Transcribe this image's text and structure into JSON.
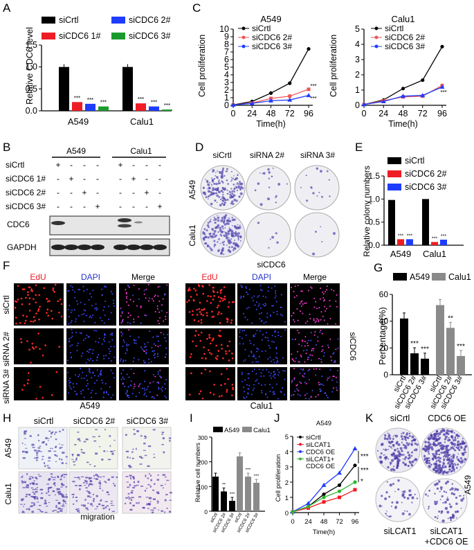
{
  "panels": {
    "A": {
      "letter": "A",
      "ylabel": "Relative CDC6 level",
      "legend": [
        {
          "label": "siCrtl",
          "color": "#000000"
        },
        {
          "label": "siCDC6 1#",
          "color": "#ee1c24"
        },
        {
          "label": "siCDC6 2#",
          "color": "#1e3cff"
        },
        {
          "label": "siCDC6 3#",
          "color": "#1a9a2e"
        }
      ],
      "ticks": [
        "0.0",
        "0.5",
        "1.0",
        "1.5"
      ],
      "sig": "***"
    },
    "B": {
      "letter": "B",
      "groups": [
        "A549",
        "Calu1"
      ],
      "rows": [
        "siCrtl",
        "siCDC6 1#",
        "siCDC6 2#",
        "siCDC6 3#"
      ],
      "marks": [
        [
          "+",
          "-",
          "-",
          "-",
          "+",
          "-",
          "-",
          "-"
        ],
        [
          "-",
          "+",
          "-",
          "-",
          "-",
          "+",
          "-",
          "-"
        ],
        [
          "-",
          "-",
          "+",
          "-",
          "-",
          "-",
          "+",
          "-"
        ],
        [
          "-",
          "-",
          "-",
          "+",
          "-",
          "-",
          "-",
          "+"
        ]
      ],
      "blots": [
        "CDC6",
        "GAPDH"
      ]
    },
    "C": {
      "letter": "C",
      "ylabel": "Cell proliferation",
      "xlabel": "Time(h)",
      "sig": "***"
    },
    "D": {
      "letter": "D",
      "cols": [
        "siCrtl",
        "siRNA 2#",
        "siRNA 3#"
      ],
      "rows": [
        "A549",
        "Calu1"
      ],
      "caption": "siCDC6"
    },
    "E": {
      "letter": "E",
      "ylabel": "Relative colony numbers",
      "ticks": [
        "0.0",
        "0.5",
        "1.0",
        "1.5"
      ],
      "sig": "***",
      "legend": [
        {
          "label": "siCrtl",
          "color": "#000000"
        },
        {
          "label": "siCDC6 2#",
          "color": "#ee1c24"
        },
        {
          "label": "siCDC6 3#",
          "color": "#1e3cff"
        }
      ]
    },
    "F": {
      "letter": "F",
      "channels": [
        "EdU",
        "DAPI",
        "Merge"
      ],
      "rows": [
        "siCrtl",
        "siRNA 2#",
        "siRNA 3#"
      ],
      "groups": [
        "A549",
        "Calu1"
      ],
      "side": "siCDC6",
      "colors": {
        "edu": "#ee1c24",
        "dapi": "#2233cc"
      }
    },
    "G": {
      "letter": "G",
      "ylabel": "Percentage(%)",
      "ticks": [
        "0",
        "20",
        "40",
        "60"
      ],
      "legend": [
        "A549",
        "Calu1"
      ],
      "xcats": [
        "siCrtl",
        "siCDC6 2#",
        "siCDC6 3#"
      ],
      "sig": [
        "***",
        "***",
        "**",
        "***"
      ]
    },
    "H": {
      "letter": "H",
      "cols": [
        "siCrtl",
        "siCDC6 2#",
        "siCDC6 3#"
      ],
      "rows": [
        "A549",
        "Calu1"
      ],
      "caption": "migration"
    },
    "I": {
      "letter": "I",
      "ylabel": "Relative cell numbers",
      "ticks": [
        "0",
        "100",
        "200",
        "300"
      ],
      "legend": [
        "A549",
        "Calu1"
      ],
      "xcats": [
        "siCrtl",
        "siCDC6 2#",
        "siCDC6 3#"
      ],
      "sig": [
        "**",
        "***",
        "***",
        "***"
      ]
    },
    "J": {
      "letter": "J",
      "title": "A549",
      "ylabel": "Cell proliferation",
      "xlabel": "Time(h)",
      "legend": [
        "siCrtl",
        "siLCAT1",
        "CDC6 OE",
        "siLCAT1+",
        "CDC6 OE"
      ],
      "sig": [
        "***",
        "***",
        "*"
      ]
    },
    "K": {
      "letter": "K",
      "labels": [
        "siCrtl",
        "CDC6 OE",
        "siLCAT1",
        "siLCAT1",
        "+CDC6 OE"
      ],
      "side": "A549"
    }
  },
  "chart_data": [
    {
      "type": "bar",
      "panel": "A",
      "categories": [
        "A549",
        "Calu1"
      ],
      "ylim": [
        0,
        1.5
      ],
      "series": [
        {
          "name": "siCrtl",
          "values": [
            1.0,
            1.0
          ]
        },
        {
          "name": "siCDC6 1#",
          "values": [
            0.2,
            0.17
          ]
        },
        {
          "name": "siCDC6 2#",
          "values": [
            0.16,
            0.1
          ]
        },
        {
          "name": "siCDC6 3#",
          "values": [
            0.1,
            0.03
          ]
        }
      ]
    },
    {
      "type": "line",
      "panel": "C1",
      "title": "A549",
      "x": [
        0,
        24,
        48,
        72,
        96
      ],
      "ylim": [
        0,
        10
      ],
      "xticks": [
        0,
        24,
        48,
        72,
        96
      ],
      "yticks": [
        0,
        1,
        2,
        3,
        4,
        5,
        6,
        7,
        8,
        9,
        10
      ],
      "series": [
        {
          "name": "siCrtl",
          "values": [
            0.05,
            0.5,
            1.6,
            2.9,
            7.4
          ]
        },
        {
          "name": "siCDC6 2#",
          "values": [
            0.05,
            0.3,
            0.9,
            1.2,
            2.1
          ]
        },
        {
          "name": "siCDC6 3#",
          "values": [
            0.05,
            0.25,
            0.6,
            0.7,
            1.3
          ]
        }
      ]
    },
    {
      "type": "line",
      "panel": "C2",
      "title": "Calu1",
      "x": [
        0,
        24,
        48,
        72,
        96
      ],
      "ylim": [
        0,
        5
      ],
      "xticks": [
        0,
        24,
        48,
        72,
        96
      ],
      "yticks": [
        0,
        1,
        2,
        3,
        4,
        5
      ],
      "series": [
        {
          "name": "siCrtl",
          "values": [
            0.05,
            0.35,
            1.1,
            1.65,
            3.85
          ]
        },
        {
          "name": "siCDC6 2#",
          "values": [
            0.05,
            0.3,
            0.55,
            0.6,
            1.3
          ]
        },
        {
          "name": "siCDC6 3#",
          "values": [
            0.05,
            0.25,
            0.6,
            0.65,
            1.2
          ]
        }
      ]
    },
    {
      "type": "bar",
      "panel": "E",
      "categories": [
        "A549",
        "Calu1"
      ],
      "ylim": [
        0,
        1.5
      ],
      "series": [
        {
          "name": "siCrtl",
          "values": [
            0.98,
            1.0
          ]
        },
        {
          "name": "siCDC6 2#",
          "values": [
            0.13,
            0.07
          ]
        },
        {
          "name": "siCDC6 3#",
          "values": [
            0.13,
            0.12
          ]
        }
      ]
    },
    {
      "type": "bar",
      "panel": "G",
      "ylim": [
        0,
        60
      ],
      "series": [
        {
          "name": "A549",
          "categories": [
            "siCrtl",
            "siCDC6 2#",
            "siCDC6 3#"
          ],
          "values": [
            42,
            16,
            12
          ]
        },
        {
          "name": "Calu1",
          "categories": [
            "siCrtl",
            "siCDC6 2#",
            "siCDC6 3#"
          ],
          "values": [
            52,
            35,
            14
          ]
        }
      ]
    },
    {
      "type": "bar",
      "panel": "I",
      "ylim": [
        0,
        300
      ],
      "series": [
        {
          "name": "A549",
          "categories": [
            "siCrtl",
            "siCDC6 2#",
            "siCDC6 3#"
          ],
          "values": [
            140,
            80,
            42
          ]
        },
        {
          "name": "Calu1",
          "categories": [
            "siCrtl",
            "siCDC6 2#",
            "siCDC6 3#"
          ],
          "values": [
            222,
            140,
            115
          ]
        }
      ]
    },
    {
      "type": "line",
      "panel": "J",
      "title": "A549",
      "x": [
        0,
        24,
        48,
        72,
        96
      ],
      "ylim": [
        0,
        5
      ],
      "xticks": [
        0,
        24,
        48,
        72,
        96
      ],
      "yticks": [
        0,
        1,
        2,
        3,
        4,
        5
      ],
      "series": [
        {
          "name": "siCrtl",
          "values": [
            0.05,
            0.4,
            1.2,
            1.8,
            3.1
          ]
        },
        {
          "name": "siLCAT1",
          "values": [
            0.05,
            0.3,
            0.7,
            1.0,
            1.5
          ]
        },
        {
          "name": "CDC6 OE",
          "values": [
            0.05,
            0.6,
            1.8,
            2.6,
            4.2
          ]
        },
        {
          "name": "siLCAT1+ CDC6 OE",
          "values": [
            0.05,
            0.4,
            1.0,
            1.4,
            2.0
          ]
        }
      ]
    }
  ],
  "colors": {
    "black": "#000000",
    "red": "#ee1c24",
    "blue": "#1e3cff",
    "green": "#1a9a2e",
    "gray": "#8a8a8a",
    "purple": "#5a4fb0"
  }
}
